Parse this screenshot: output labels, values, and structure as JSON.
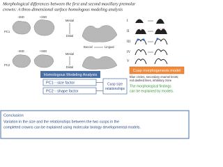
{
  "header": {
    "title": [
      "Morphological differences between the first and second maxillary premolar",
      "crowns: A three-dimensional surface homologous modeling analysis"
    ]
  },
  "figure": {
    "pc1": {
      "label": "PC1",
      "minus": "-3SD",
      "plus": "+3SD",
      "mesial": "Mesial",
      "distal": "Distal",
      "buccal": "Buccal",
      "lingual": "Lingual"
    },
    "pc2": {
      "label": "PC2",
      "minus": "-3SD",
      "plus": "+3SD",
      "mesial": "Mesial",
      "distal": "Distal"
    }
  },
  "stages": [
    "I",
    "II",
    "III",
    "IV",
    "V"
  ],
  "model": {
    "title": "Cusp morphogenesis model",
    "note": [
      "Blue circles, secondary enamel knots;",
      "red dashed lines, inhibitory zone"
    ],
    "finding": [
      "The morphological findings",
      "can be explained by models."
    ]
  },
  "analysis": {
    "title": "Homologous Modeling Analysis",
    "factors": [
      "PC1···size factor",
      "PC2···shape factor"
    ],
    "relationship": [
      "Cusp size",
      "relationships"
    ]
  },
  "conclusion": {
    "title": "Conclusion",
    "text": [
      "Variation in the size and the relationships between the two cusps in the",
      "completed crowns can be explained using molecular biology developmental models."
    ]
  }
}
